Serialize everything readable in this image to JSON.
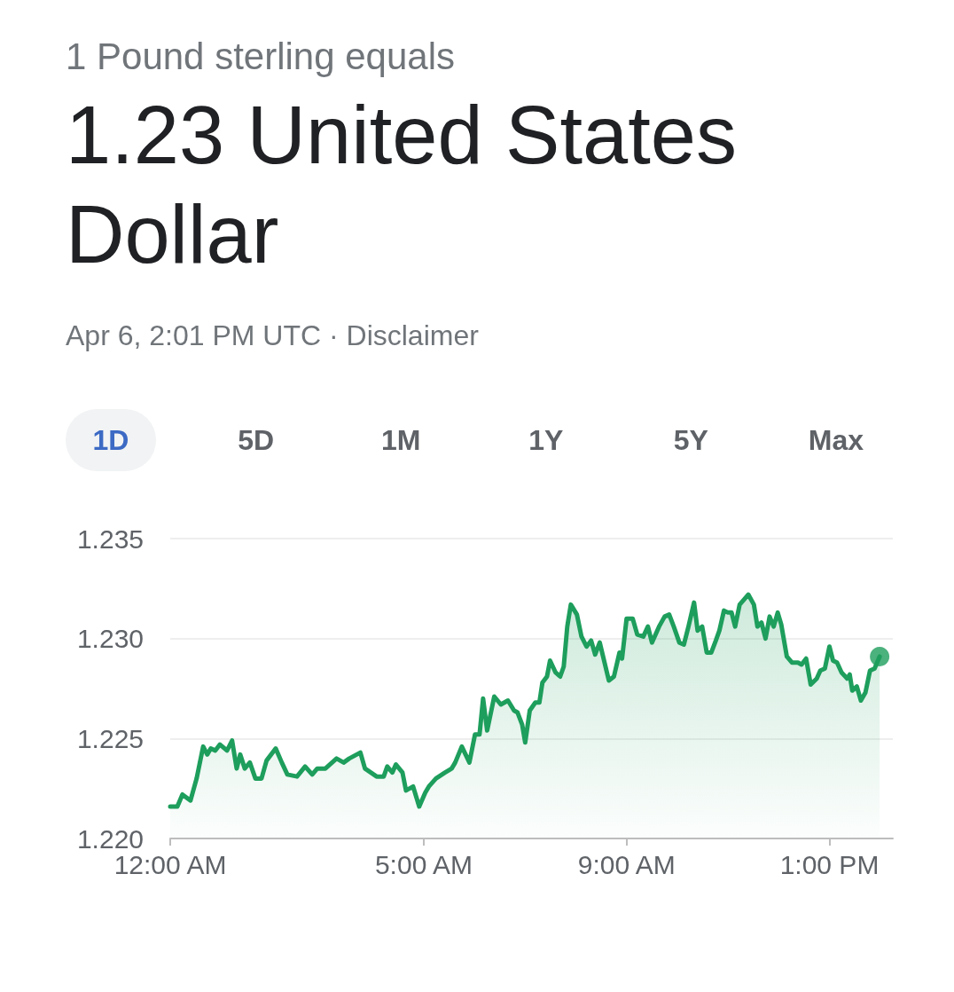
{
  "chart_data": {
    "type": "area",
    "title": "1.23 United States Dollar",
    "subtitle": "1 Pound sterling equals",
    "annotations": [
      "Apr 6, 2:01 PM UTC · Disclaimer",
      "1D",
      "5D",
      "1M",
      "1Y",
      "5Y",
      "Max"
    ],
    "xlim": [
      0,
      14.25
    ],
    "xticks": [
      {
        "value": 0,
        "label": "12:00 AM"
      },
      {
        "value": 5,
        "label": "5:00 AM"
      },
      {
        "value": 9,
        "label": "9:00 AM"
      },
      {
        "value": 13,
        "label": "1:00 PM"
      }
    ],
    "ylim": [
      1.22,
      1.235
    ],
    "yticks": [
      {
        "value": 1.22,
        "label": "1.220"
      },
      1.225,
      {
        "value": 1.23,
        "label": "1.230"
      },
      1.235
    ],
    "grid": "y",
    "series": [
      {
        "color": "#1e9e5c",
        "x": [
          0,
          0.14,
          0.24,
          0.4,
          0.52,
          0.65,
          0.73,
          0.8,
          0.89,
          0.98,
          1.12,
          1.22,
          1.31,
          1.38,
          1.47,
          1.57,
          1.68,
          1.8,
          1.9,
          2.08,
          2.2,
          2.31,
          2.5,
          2.66,
          2.8,
          2.9,
          3.06,
          3.28,
          3.42,
          3.53,
          3.75,
          3.84,
          4.07,
          4.21,
          4.28,
          4.38,
          4.45,
          4.58,
          4.65,
          4.79,
          4.91,
          5.03,
          5.1,
          5.24,
          5.42,
          5.55,
          5.62,
          5.75,
          5.9,
          6.01,
          6.1,
          6.17,
          6.25,
          6.39,
          6.52,
          6.66,
          6.78,
          6.85,
          6.94,
          7.0,
          7.09,
          7.2,
          7.28,
          7.34,
          7.43,
          7.49,
          7.6,
          7.69,
          7.76,
          7.83,
          7.9,
          8.02,
          8.11,
          8.21,
          8.3,
          8.38,
          8.47,
          8.65,
          8.75,
          8.86,
          8.91,
          9.0,
          9.12,
          9.21,
          9.33,
          9.42,
          9.5,
          9.64,
          9.75,
          9.84,
          9.93,
          10.04,
          10.13,
          10.22,
          10.33,
          10.4,
          10.49,
          10.58,
          10.67,
          10.76,
          10.83,
          10.92,
          11.0,
          11.07,
          11.14,
          11.23,
          11.4,
          11.51,
          11.58,
          11.66,
          11.74,
          11.82,
          11.9,
          11.98,
          12.05,
          12.16,
          12.26,
          12.38,
          12.45,
          12.54,
          12.63,
          12.75,
          12.82,
          12.91,
          13.0,
          13.07,
          13.15,
          13.24,
          13.35,
          13.4,
          13.45,
          13.54,
          13.62,
          13.71,
          13.8,
          13.89,
          13.99
        ],
        "values": [
          1.2216,
          1.2216,
          1.2222,
          1.2219,
          1.223,
          1.2246,
          1.2242,
          1.2245,
          1.2244,
          1.2247,
          1.2244,
          1.2249,
          1.2235,
          1.2242,
          1.2235,
          1.2238,
          1.223,
          1.223,
          1.2239,
          1.2245,
          1.2238,
          1.2232,
          1.2231,
          1.2236,
          1.2232,
          1.2235,
          1.2235,
          1.224,
          1.2238,
          1.224,
          1.2243,
          1.2235,
          1.2231,
          1.2231,
          1.2236,
          1.2233,
          1.2237,
          1.2233,
          1.2224,
          1.2226,
          1.2216,
          1.2223,
          1.2226,
          1.223,
          1.2233,
          1.2235,
          1.2238,
          1.2246,
          1.2238,
          1.2252,
          1.2252,
          1.227,
          1.2254,
          1.2271,
          1.2267,
          1.2269,
          1.2264,
          1.2263,
          1.2257,
          1.2248,
          1.2264,
          1.2268,
          1.2268,
          1.2278,
          1.2281,
          1.2289,
          1.2283,
          1.2281,
          1.2286,
          1.2306,
          1.2317,
          1.2312,
          1.2301,
          1.2296,
          1.2299,
          1.2292,
          1.2298,
          1.2279,
          1.2281,
          1.2293,
          1.229,
          1.231,
          1.231,
          1.2302,
          1.2301,
          1.2306,
          1.2298,
          1.2306,
          1.2311,
          1.2312,
          1.2306,
          1.2298,
          1.2297,
          1.2306,
          1.2318,
          1.2304,
          1.2306,
          1.2293,
          1.2293,
          1.2299,
          1.2304,
          1.2314,
          1.2313,
          1.2313,
          1.2306,
          1.2317,
          1.2322,
          1.2317,
          1.2306,
          1.2308,
          1.23,
          1.2311,
          1.2306,
          1.2313,
          1.2307,
          1.2291,
          1.2288,
          1.2288,
          1.2287,
          1.229,
          1.2277,
          1.228,
          1.2284,
          1.2285,
          1.2296,
          1.2289,
          1.2288,
          1.2283,
          1.228,
          1.2282,
          1.2274,
          1.2276,
          1.2269,
          1.2273,
          1.2284,
          1.2285,
          1.2291
        ]
      },
      {
        "type": "scatter",
        "color": "#1e9e5c",
        "x": [
          13.99
        ],
        "values": [
          1.2291
        ]
      }
    ]
  }
}
